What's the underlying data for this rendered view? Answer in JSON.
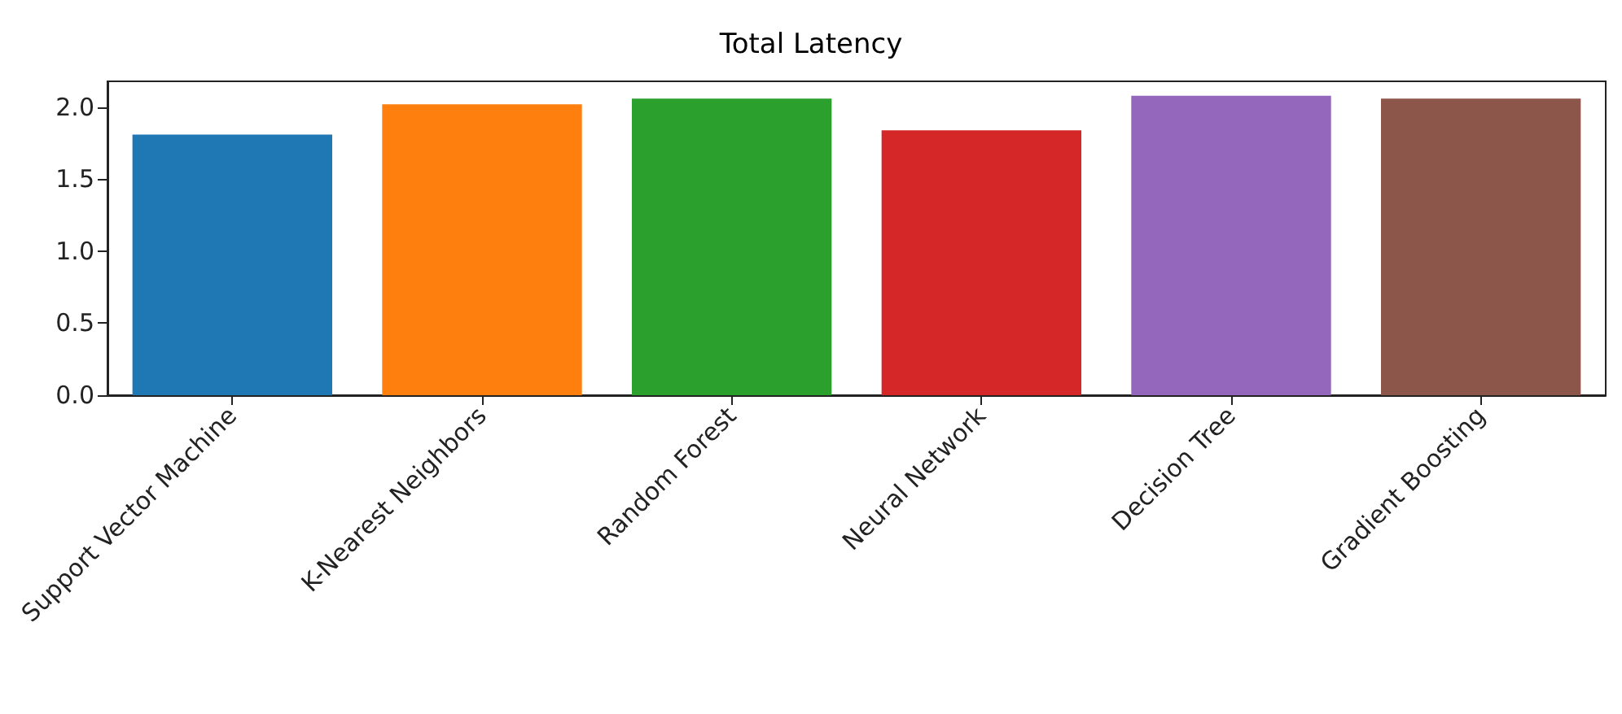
{
  "chart_data": {
    "type": "bar",
    "title": "Total Latency",
    "categories": [
      "Support Vector Machine",
      "K-Nearest Neighbors",
      "Random Forest",
      "Neural Network",
      "Decision Tree",
      "Gradient Boosting"
    ],
    "values": [
      1.81,
      2.02,
      2.06,
      1.84,
      2.08,
      2.06
    ],
    "colors": [
      "#1f77b4",
      "#ff7f0e",
      "#2ca02c",
      "#d62728",
      "#9467bd",
      "#8c564b"
    ],
    "ylim": [
      0,
      2.18
    ],
    "yticks": [
      {
        "value": 0,
        "label": "0.0"
      },
      {
        "value": 0.5,
        "label": "0.5"
      },
      {
        "value": 1,
        "label": "1.0"
      },
      {
        "value": 1.5,
        "label": "1.5"
      },
      {
        "value": 2,
        "label": "2.0"
      }
    ],
    "grid": false
  }
}
